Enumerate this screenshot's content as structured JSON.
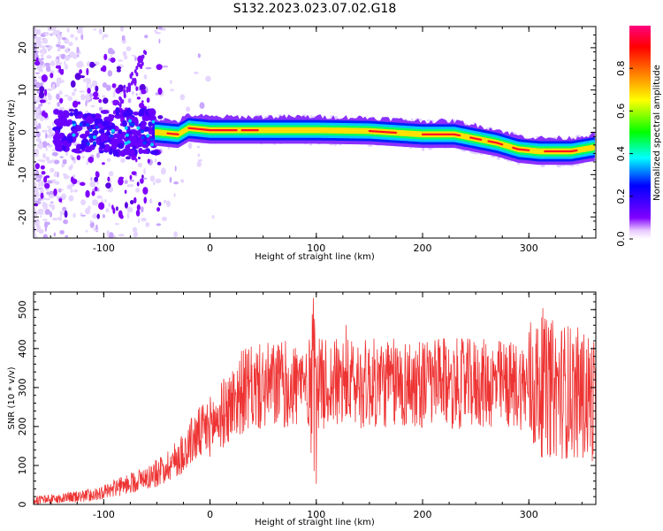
{
  "title": "S132.2023.023.07.02.G18",
  "colors": {
    "snr_line": "#ee3333",
    "axes": "#000000",
    "background": "#ffffff"
  },
  "chart_data": [
    {
      "type": "heatmap",
      "xlabel": "Height of straight line (km)",
      "ylabel": "Frequency (Hz)",
      "xlim": [
        -166,
        363
      ],
      "ylim": [
        -25,
        25
      ],
      "x_ticks": [
        -100,
        0,
        100,
        200,
        300
      ],
      "y_ticks": [
        -20,
        -10,
        0,
        10,
        20
      ],
      "colorbar": {
        "label": "Normalized spectral amplitude",
        "range": [
          0,
          1
        ],
        "ticks": [
          "0.0",
          "0.2",
          "0.4",
          "0.6",
          "0.8"
        ],
        "colormap": "rainbow (violet → blue → cyan → green → yellow → red → magenta)"
      },
      "ridge_frequency": [
        {
          "x": -50,
          "y": 0.0
        },
        {
          "x": -30,
          "y": -0.5
        },
        {
          "x": -20,
          "y": 1.0
        },
        {
          "x": 0,
          "y": 0.5
        },
        {
          "x": 50,
          "y": 0.5
        },
        {
          "x": 100,
          "y": 0.5
        },
        {
          "x": 150,
          "y": 0.3
        },
        {
          "x": 200,
          "y": -0.5
        },
        {
          "x": 230,
          "y": -0.5
        },
        {
          "x": 250,
          "y": -1.5
        },
        {
          "x": 270,
          "y": -2.5
        },
        {
          "x": 290,
          "y": -4.0
        },
        {
          "x": 310,
          "y": -4.5
        },
        {
          "x": 340,
          "y": -4.5
        },
        {
          "x": 363,
          "y": -3.5
        }
      ]
    },
    {
      "type": "line",
      "xlabel": "Height of straight line (km)",
      "ylabel": "SNR (10 * v/v)",
      "xlim": [
        -166,
        363
      ],
      "ylim": [
        0,
        545
      ],
      "x_ticks": [
        -100,
        0,
        100,
        200,
        300
      ],
      "y_ticks": [
        0,
        100,
        200,
        300,
        400,
        500
      ],
      "trend": [
        {
          "x": -166,
          "y": 10
        },
        {
          "x": -140,
          "y": 15
        },
        {
          "x": -110,
          "y": 25
        },
        {
          "x": -90,
          "y": 40
        },
        {
          "x": -70,
          "y": 60
        },
        {
          "x": -50,
          "y": 80
        },
        {
          "x": -30,
          "y": 120
        },
        {
          "x": -15,
          "y": 170
        },
        {
          "x": 0,
          "y": 200
        },
        {
          "x": 15,
          "y": 240
        },
        {
          "x": 30,
          "y": 290
        },
        {
          "x": 60,
          "y": 305
        },
        {
          "x": 100,
          "y": 310
        },
        {
          "x": 150,
          "y": 310
        },
        {
          "x": 200,
          "y": 310
        },
        {
          "x": 250,
          "y": 310
        },
        {
          "x": 300,
          "y": 305
        },
        {
          "x": 340,
          "y": 290
        },
        {
          "x": 363,
          "y": 270
        }
      ]
    }
  ]
}
